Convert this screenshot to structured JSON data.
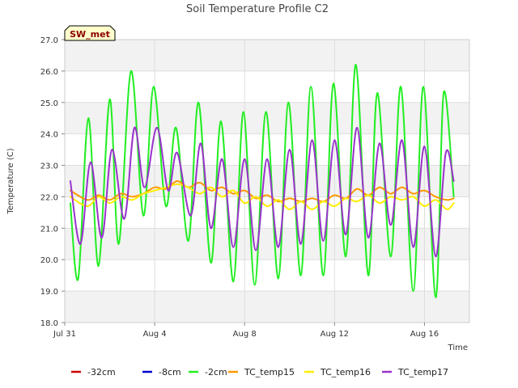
{
  "chart_data": {
    "type": "line",
    "title": "Soil Temperature Profile C2",
    "xlabel": "Time",
    "ylabel": "Temperature (C)",
    "ylim": [
      18.0,
      27.0
    ],
    "yticks": [
      "18.0",
      "19.0",
      "20.0",
      "21.0",
      "22.0",
      "23.0",
      "24.0",
      "25.0",
      "26.0",
      "27.0"
    ],
    "xlim_days": [
      0,
      18
    ],
    "xticks": [
      {
        "label": "Jul 31",
        "day": 0
      },
      {
        "label": "Aug 4",
        "day": 4
      },
      {
        "label": "Aug 8",
        "day": 8
      },
      {
        "label": "Aug 12",
        "day": 12
      },
      {
        "label": "Aug 16",
        "day": 16
      }
    ],
    "grid": true,
    "station_badge": "SW_met",
    "legend_position": "bottom",
    "series": [
      {
        "name": "-32cm",
        "color": "#cc0000",
        "x": [],
        "y": []
      },
      {
        "name": "-8cm",
        "color": "#0000cc",
        "x": [],
        "y": []
      },
      {
        "name": "-2cm",
        "color": "#22ee22",
        "x": [
          0.25,
          0.6,
          1.05,
          1.5,
          2.0,
          2.4,
          2.95,
          3.5,
          3.95,
          4.5,
          4.95,
          5.5,
          5.95,
          6.5,
          6.95,
          7.5,
          7.95,
          8.45,
          8.95,
          9.5,
          9.95,
          10.5,
          10.95,
          11.5,
          11.95,
          12.5,
          12.95,
          13.5,
          13.9,
          14.5,
          14.95,
          15.5,
          15.95,
          16.5,
          16.85,
          17.3
        ],
        "y": [
          21.8,
          19.4,
          24.5,
          19.8,
          25.1,
          20.5,
          26.0,
          21.4,
          25.5,
          21.7,
          24.2,
          20.6,
          25.0,
          19.9,
          24.4,
          19.3,
          24.7,
          19.2,
          24.7,
          19.4,
          25.0,
          19.5,
          25.5,
          19.5,
          25.6,
          20.1,
          26.2,
          19.5,
          25.3,
          20.1,
          25.5,
          19.0,
          25.5,
          18.8,
          25.3,
          22.0
        ]
      },
      {
        "name": "TC_temp15",
        "color": "#ff9900",
        "x": [
          0.25,
          1.0,
          1.5,
          2.0,
          2.5,
          3.0,
          3.5,
          4.0,
          4.5,
          5.0,
          5.5,
          6.0,
          6.5,
          7.0,
          7.5,
          8.0,
          8.5,
          9.0,
          9.5,
          10.0,
          10.5,
          11.0,
          11.5,
          12.0,
          12.5,
          13.0,
          13.5,
          14.0,
          14.5,
          15.0,
          15.5,
          16.0,
          16.5,
          17.0,
          17.3
        ],
        "y": [
          22.2,
          21.9,
          22.05,
          21.9,
          22.1,
          22.0,
          22.1,
          22.3,
          22.25,
          22.5,
          22.3,
          22.45,
          22.2,
          22.3,
          22.1,
          22.2,
          21.95,
          22.05,
          21.85,
          21.95,
          21.85,
          21.95,
          21.85,
          22.05,
          21.95,
          22.25,
          22.05,
          22.3,
          22.1,
          22.3,
          22.1,
          22.2,
          22.0,
          21.9,
          21.95
        ]
      },
      {
        "name": "TC_temp16",
        "color": "#ffee00",
        "x": [
          0.25,
          1.0,
          1.5,
          2.0,
          2.5,
          3.0,
          3.5,
          4.0,
          4.5,
          5.0,
          5.5,
          6.0,
          6.5,
          7.0,
          7.5,
          8.0,
          8.5,
          9.0,
          9.5,
          10.0,
          10.5,
          11.0,
          11.5,
          12.0,
          12.5,
          13.0,
          13.5,
          14.0,
          14.5,
          15.0,
          15.5,
          16.0,
          16.5,
          17.0,
          17.3
        ],
        "y": [
          22.0,
          21.7,
          22.0,
          21.8,
          22.0,
          21.9,
          22.1,
          22.2,
          22.3,
          22.4,
          22.3,
          22.1,
          22.3,
          22.0,
          22.2,
          21.8,
          22.0,
          21.7,
          21.9,
          21.6,
          21.85,
          21.6,
          21.85,
          21.7,
          21.95,
          21.85,
          22.05,
          21.8,
          22.0,
          21.9,
          22.0,
          21.7,
          21.9,
          21.6,
          21.8
        ]
      },
      {
        "name": "TC_temp17",
        "color": "#9933cc",
        "x": [
          0.25,
          0.7,
          1.15,
          1.65,
          2.1,
          2.65,
          3.1,
          3.55,
          4.1,
          4.6,
          5.0,
          5.6,
          6.05,
          6.5,
          7.0,
          7.5,
          8.0,
          8.5,
          9.0,
          9.5,
          10.0,
          10.5,
          11.0,
          11.5,
          12.0,
          12.5,
          13.0,
          13.5,
          14.0,
          14.5,
          15.0,
          15.5,
          16.0,
          16.5,
          16.95,
          17.3
        ],
        "y": [
          22.5,
          20.5,
          23.1,
          20.7,
          23.5,
          21.3,
          24.2,
          22.3,
          24.2,
          22.2,
          23.4,
          21.4,
          23.7,
          21.0,
          23.2,
          20.4,
          23.2,
          20.3,
          23.2,
          20.4,
          23.5,
          20.5,
          23.8,
          20.6,
          23.8,
          20.8,
          24.2,
          20.7,
          23.7,
          21.1,
          23.8,
          20.4,
          23.6,
          20.1,
          23.4,
          22.5
        ]
      }
    ]
  }
}
